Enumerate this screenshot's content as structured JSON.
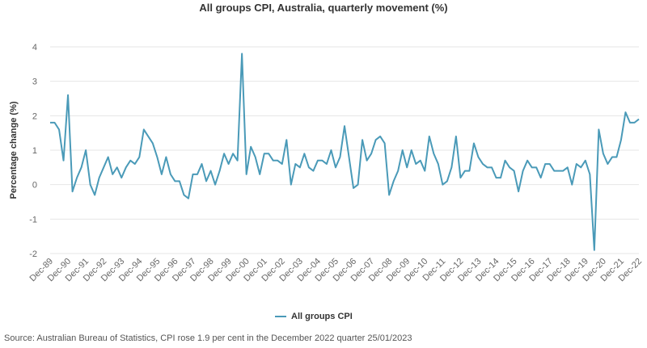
{
  "chart_data": {
    "type": "line",
    "title": "All groups CPI, Australia, quarterly movement (%)",
    "ylabel": "Percentage change (%)",
    "xlabel": "",
    "ylim": [
      -2,
      4
    ],
    "yticks": [
      -2,
      -1,
      0,
      1,
      2,
      3,
      4
    ],
    "grid": true,
    "legend_position": "bottom-center",
    "x_tick_labels": [
      "Dec-89",
      "Dec-90",
      "Dec-91",
      "Dec-92",
      "Dec-93",
      "Dec-94",
      "Dec-95",
      "Dec-96",
      "Dec-97",
      "Dec-98",
      "Dec-99",
      "Dec-00",
      "Dec-01",
      "Dec-02",
      "Dec-03",
      "Dec-04",
      "Dec-05",
      "Dec-06",
      "Dec-07",
      "Dec-08",
      "Dec-09",
      "Dec-10",
      "Dec-11",
      "Dec-12",
      "Dec-13",
      "Dec-14",
      "Dec-15",
      "Dec-16",
      "Dec-17",
      "Dec-18",
      "Dec-19",
      "Dec-20",
      "Dec-21",
      "Dec-22"
    ],
    "series": [
      {
        "name": "All groups CPI",
        "color": "#4a9ab8",
        "values": [
          1.8,
          1.8,
          1.6,
          0.7,
          2.6,
          -0.2,
          0.2,
          0.5,
          1.0,
          0.0,
          -0.3,
          0.2,
          0.5,
          0.8,
          0.3,
          0.5,
          0.2,
          0.5,
          0.7,
          0.6,
          0.8,
          1.6,
          1.4,
          1.2,
          0.8,
          0.3,
          0.8,
          0.3,
          0.1,
          0.1,
          -0.3,
          -0.4,
          0.3,
          0.3,
          0.6,
          0.1,
          0.4,
          0.0,
          0.4,
          0.9,
          0.6,
          0.9,
          0.7,
          3.8,
          0.3,
          1.1,
          0.8,
          0.3,
          0.9,
          0.9,
          0.7,
          0.7,
          0.6,
          1.3,
          0.0,
          0.6,
          0.5,
          0.9,
          0.5,
          0.4,
          0.7,
          0.7,
          0.6,
          1.0,
          0.5,
          0.8,
          1.7,
          0.8,
          -0.1,
          0.0,
          1.3,
          0.7,
          0.9,
          1.3,
          1.4,
          1.2,
          -0.3,
          0.1,
          0.4,
          1.0,
          0.5,
          1.0,
          0.6,
          0.7,
          0.4,
          1.4,
          0.9,
          0.6,
          0.0,
          0.1,
          0.5,
          1.4,
          0.2,
          0.4,
          0.4,
          1.2,
          0.8,
          0.6,
          0.5,
          0.5,
          0.2,
          0.2,
          0.7,
          0.5,
          0.4,
          -0.2,
          0.4,
          0.7,
          0.5,
          0.5,
          0.2,
          0.6,
          0.6,
          0.4,
          0.4,
          0.4,
          0.5,
          0.0,
          0.6,
          0.5,
          0.7,
          0.3,
          -1.9,
          1.6,
          0.9,
          0.6,
          0.8,
          0.8,
          1.3,
          2.1,
          1.8,
          1.8,
          1.9
        ]
      }
    ]
  },
  "legend": {
    "label": "All groups CPI"
  },
  "source": "Source: Australian Bureau of Statistics, CPI rose 1.9 per cent in the December 2022 quarter 25/01/2023"
}
